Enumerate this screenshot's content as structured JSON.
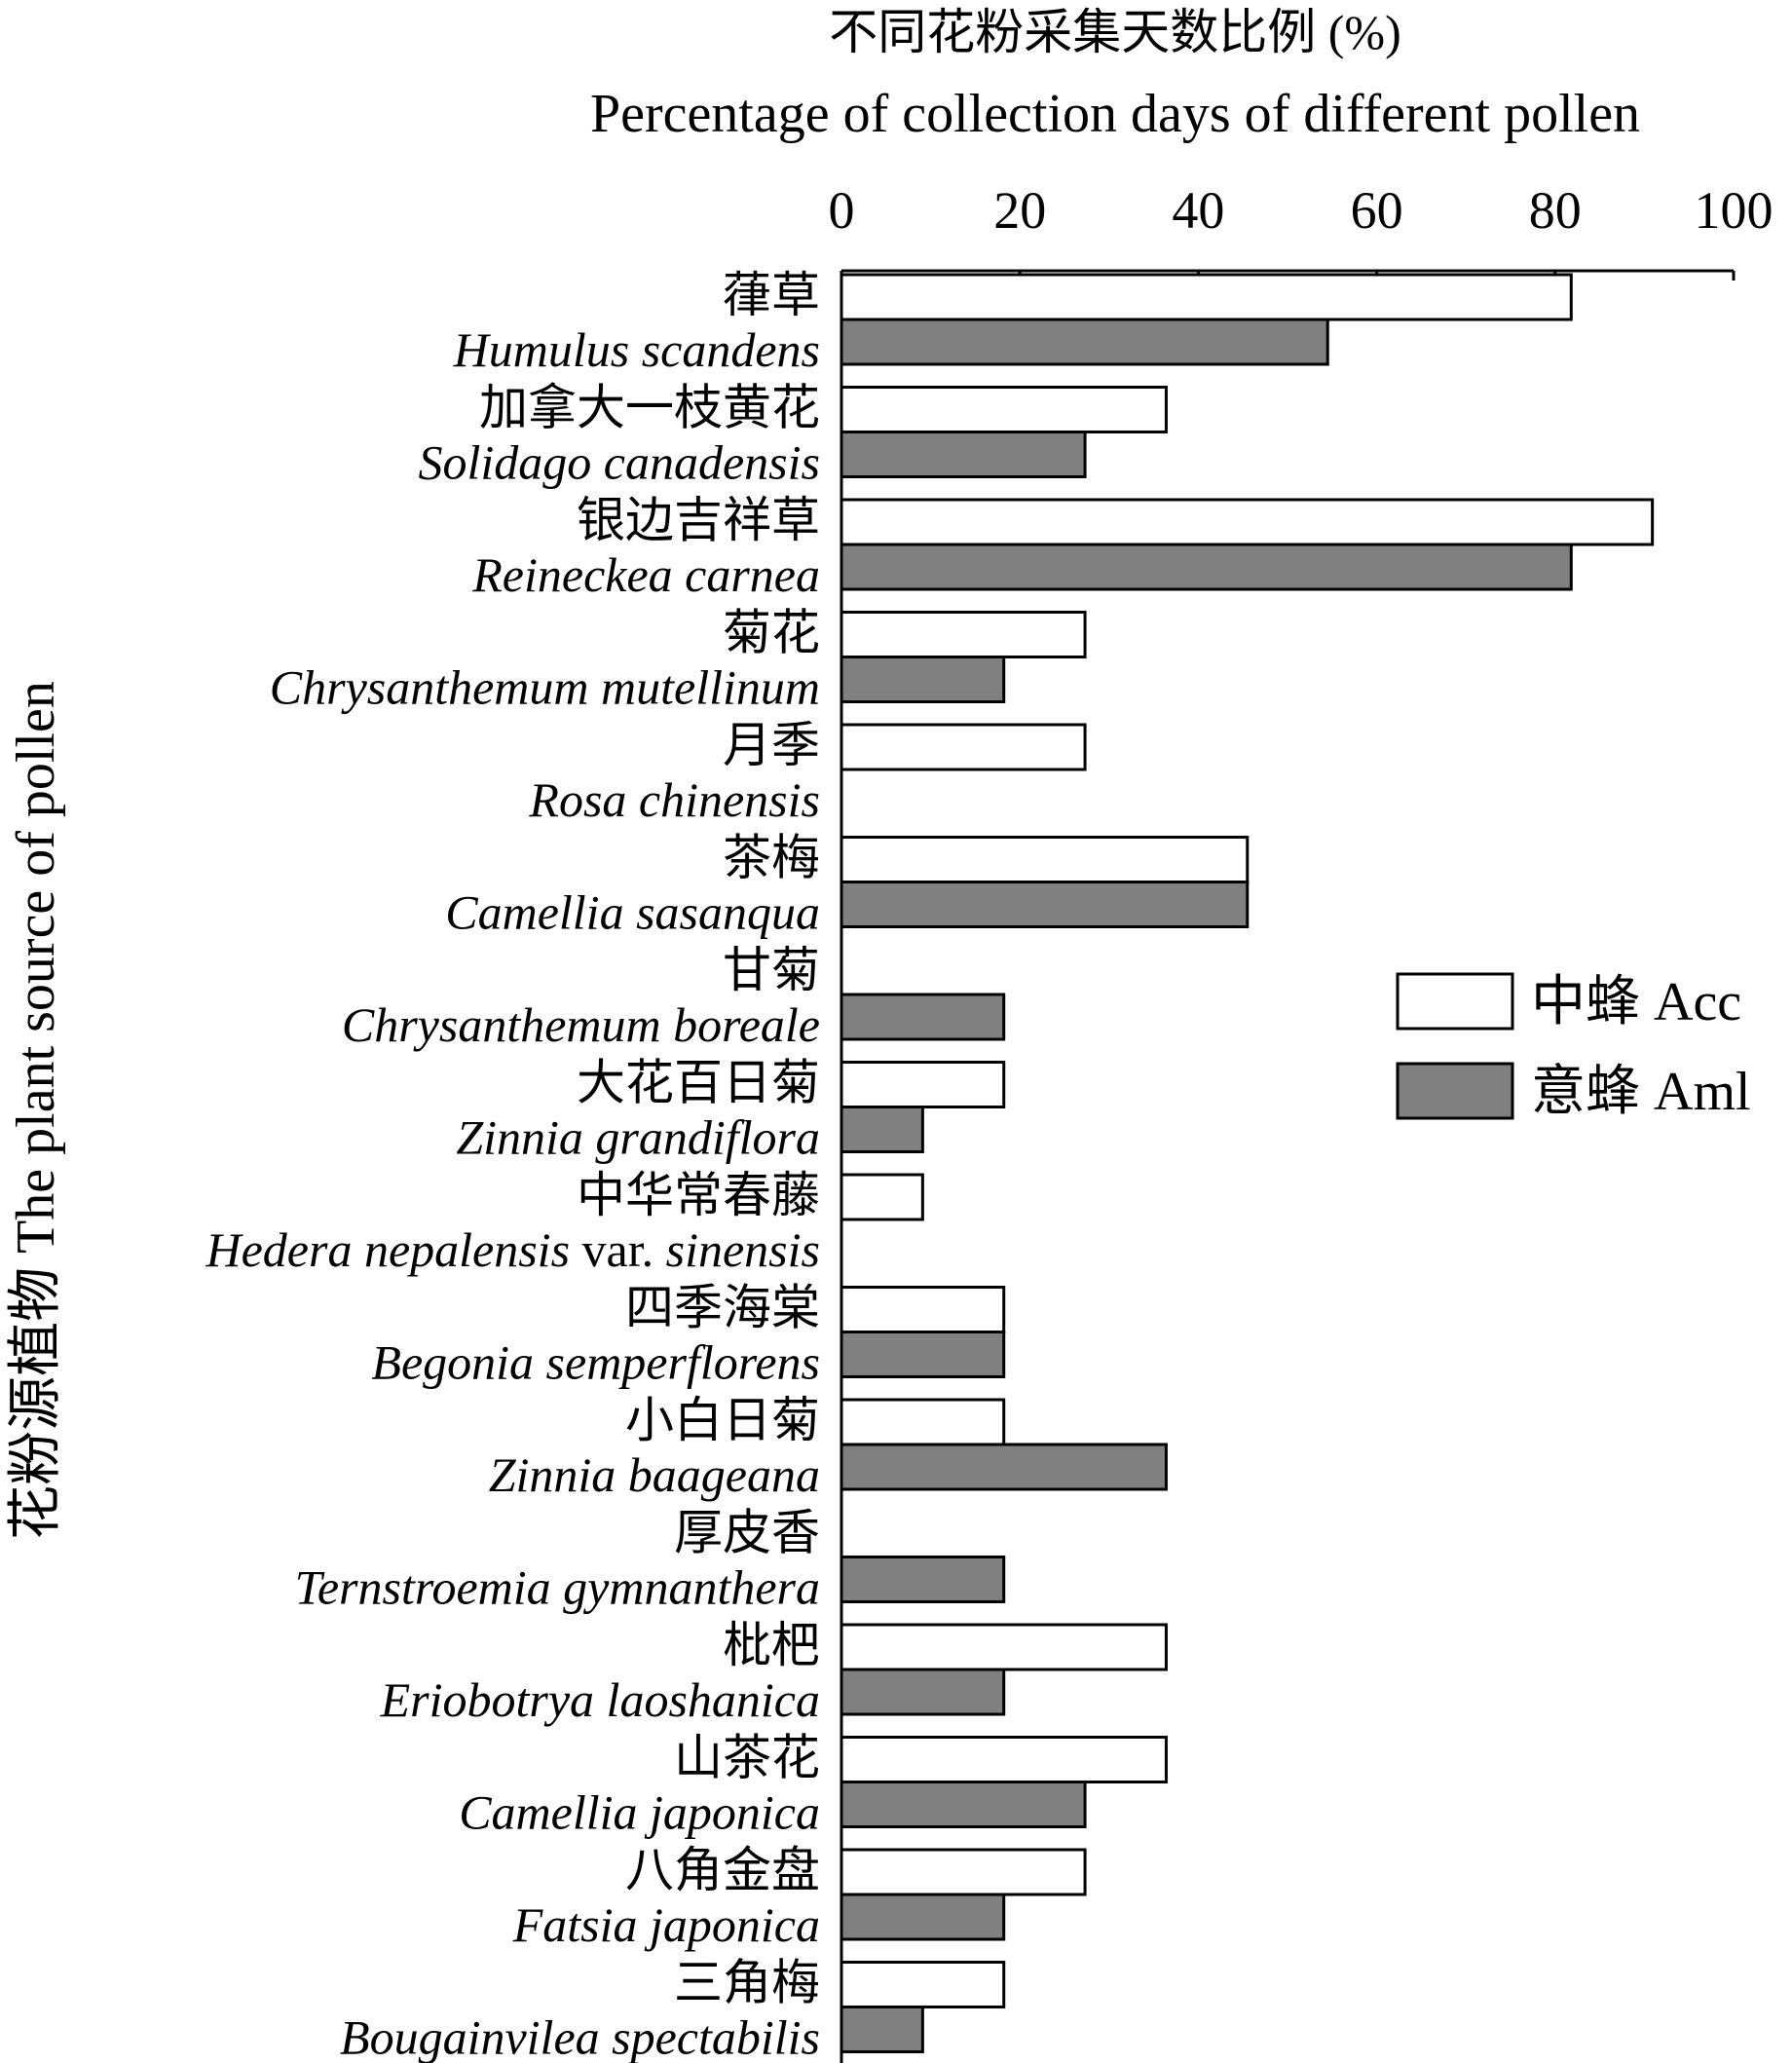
{
  "chart_data": {
    "type": "bar",
    "orientation": "horizontal",
    "title": "不同花粉采集天数比例 (%)",
    "subtitle": "Percentage of collection days of different pollen",
    "ylabel": "花粉源植物 The plant source of pollen",
    "xlim": [
      0,
      100
    ],
    "xticks": [
      0,
      20,
      40,
      60,
      80,
      100
    ],
    "x_axis_position": "top",
    "grid": false,
    "legend_position": "right",
    "categories": [
      {
        "cn": "葎草",
        "en": "Humulus scandens"
      },
      {
        "cn": "加拿大一枝黄花",
        "en": "Solidago canadensis"
      },
      {
        "cn": "银边吉祥草",
        "en": "Reineckea carnea"
      },
      {
        "cn": "菊花",
        "en": "Chrysanthemum mutellinum"
      },
      {
        "cn": "月季",
        "en": "Rosa chinensis"
      },
      {
        "cn": "茶梅",
        "en": "Camellia sasanqua"
      },
      {
        "cn": "甘菊",
        "en": "Chrysanthemum boreale"
      },
      {
        "cn": "大花百日菊",
        "en": "Zinnia grandiflora"
      },
      {
        "cn": "中华常春藤",
        "en": "Hedera nepalensis",
        "en_mid": " var. ",
        "en_tail": "sinensis"
      },
      {
        "cn": "四季海棠",
        "en": "Begonia semperflorens"
      },
      {
        "cn": "小白日菊",
        "en": "Zinnia baageana"
      },
      {
        "cn": "厚皮香",
        "en": "Ternstroemia gymnanthera"
      },
      {
        "cn": "枇杷",
        "en": "Eriobotrya laoshanica"
      },
      {
        "cn": "山茶花",
        "en": "Camellia japonica"
      },
      {
        "cn": "八角金盘",
        "en": "Fatsia japonica"
      },
      {
        "cn": "三角梅",
        "en": "Bougainvilea spectabilis"
      }
    ],
    "series": [
      {
        "name": "中蜂 Acc",
        "color": "#ffffff",
        "values": [
          81.8,
          36.4,
          90.9,
          27.3,
          27.3,
          45.5,
          0,
          18.2,
          9.1,
          18.2,
          18.2,
          0,
          36.4,
          36.4,
          27.3,
          18.2
        ]
      },
      {
        "name": "意蜂 Aml",
        "color": "#808080",
        "values": [
          54.5,
          27.3,
          81.8,
          18.2,
          0,
          45.5,
          18.2,
          9.1,
          0,
          18.2,
          36.4,
          18.2,
          18.2,
          27.3,
          18.2,
          9.1
        ]
      }
    ]
  }
}
